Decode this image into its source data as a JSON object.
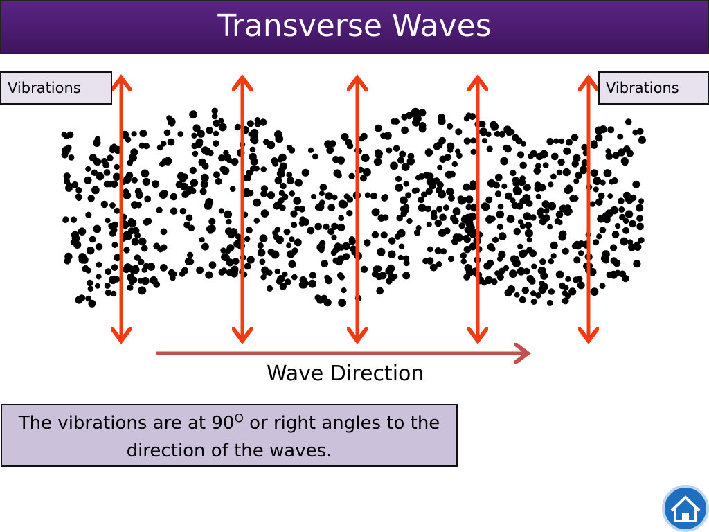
{
  "header": {
    "title": "Transverse Waves"
  },
  "labels": {
    "left": "Vibrations",
    "right": "Vibrations",
    "direction": "Wave Direction"
  },
  "caption": {
    "before": "The vibrations are at 90",
    "superscript": "O",
    "after": " or right angles to the direction of the waves."
  }
}
